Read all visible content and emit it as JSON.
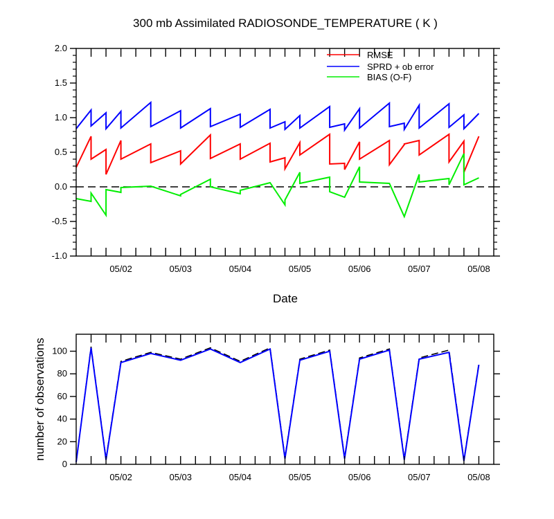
{
  "chart_data": [
    {
      "type": "line",
      "title": "300 mb Assimilated RADIOSONDE_TEMPERATURE ( K )",
      "xlabel": "Date",
      "ylabel": "",
      "xlim": [
        0,
        7.0
      ],
      "ylim": [
        -1.0,
        2.0
      ],
      "yticks": [
        -1.0,
        -0.5,
        0.0,
        0.5,
        1.0,
        1.5,
        2.0
      ],
      "ytick_labels": [
        "-1.0",
        "-0.5",
        "0.0",
        "0.5",
        "1.0",
        "1.5",
        "2.0"
      ],
      "xticks": [
        0.25,
        0.5,
        0.75,
        1,
        1.25,
        1.5,
        1.75,
        2,
        2.25,
        2.5,
        2.75,
        3,
        3.25,
        3.5,
        3.75,
        4,
        4.25,
        4.5,
        4.75,
        5,
        5.25,
        5.5,
        5.75,
        6,
        6.25,
        6.5,
        6.75
      ],
      "xtick_labels": [
        {
          "x": 0.75,
          "label": "05/02"
        },
        {
          "x": 1.75,
          "label": "05/03"
        },
        {
          "x": 2.75,
          "label": "05/04"
        },
        {
          "x": 3.75,
          "label": "05/05"
        },
        {
          "x": 4.75,
          "label": "05/06"
        },
        {
          "x": 5.75,
          "label": "05/07"
        },
        {
          "x": 6.75,
          "label": "05/08"
        }
      ],
      "reference_line": {
        "y": 0.0,
        "style": "dashed",
        "color": "#000000"
      },
      "legend": {
        "placement": "top-right",
        "entries": [
          "RMSE",
          "SPRD + ob error",
          "BIAS (O-F)"
        ]
      },
      "series": [
        {
          "name": "RMSE",
          "color": "#ff0000",
          "points": [
            [
              0,
              0.28
            ],
            [
              0.25,
              0.73
            ],
            [
              0.25,
              0.4
            ],
            [
              0.5,
              0.54
            ],
            [
              0.5,
              0.18
            ],
            [
              0.75,
              0.67
            ],
            [
              0.75,
              0.4
            ],
            [
              1.25,
              0.62
            ],
            [
              1.25,
              0.35
            ],
            [
              1.75,
              0.52
            ],
            [
              1.75,
              0.33
            ],
            [
              2.25,
              0.75
            ],
            [
              2.25,
              0.41
            ],
            [
              2.75,
              0.62
            ],
            [
              2.75,
              0.4
            ],
            [
              3.25,
              0.63
            ],
            [
              3.25,
              0.36
            ],
            [
              3.5,
              0.42
            ],
            [
              3.5,
              0.26
            ],
            [
              3.75,
              0.64
            ],
            [
              3.75,
              0.46
            ],
            [
              4.25,
              0.76
            ],
            [
              4.25,
              0.33
            ],
            [
              4.5,
              0.34
            ],
            [
              4.5,
              0.25
            ],
            [
              4.75,
              0.65
            ],
            [
              4.75,
              0.4
            ],
            [
              5.25,
              0.67
            ],
            [
              5.25,
              0.32
            ],
            [
              5.5,
              0.61
            ],
            [
              5.5,
              0.62
            ],
            [
              5.75,
              0.67
            ],
            [
              5.75,
              0.46
            ],
            [
              6.25,
              0.76
            ],
            [
              6.25,
              0.36
            ],
            [
              6.5,
              0.66
            ],
            [
              6.5,
              0.21
            ],
            [
              6.75,
              0.73
            ]
          ]
        },
        {
          "name": "SPRD + ob error",
          "color": "#0000ff",
          "points": [
            [
              0,
              0.84
            ],
            [
              0.25,
              1.11
            ],
            [
              0.25,
              0.88
            ],
            [
              0.5,
              1.07
            ],
            [
              0.5,
              0.84
            ],
            [
              0.75,
              1.09
            ],
            [
              0.75,
              0.85
            ],
            [
              1.25,
              1.22
            ],
            [
              1.25,
              0.87
            ],
            [
              1.75,
              1.1
            ],
            [
              1.75,
              0.85
            ],
            [
              2.25,
              1.13
            ],
            [
              2.25,
              0.87
            ],
            [
              2.75,
              1.05
            ],
            [
              2.75,
              0.86
            ],
            [
              3.25,
              1.12
            ],
            [
              3.25,
              0.85
            ],
            [
              3.5,
              0.94
            ],
            [
              3.5,
              0.83
            ],
            [
              3.75,
              1.03
            ],
            [
              3.75,
              0.85
            ],
            [
              4.25,
              1.16
            ],
            [
              4.25,
              0.86
            ],
            [
              4.5,
              0.91
            ],
            [
              4.5,
              0.82
            ],
            [
              4.75,
              1.13
            ],
            [
              4.75,
              0.85
            ],
            [
              5.25,
              1.21
            ],
            [
              5.25,
              0.87
            ],
            [
              5.5,
              0.92
            ],
            [
              5.5,
              0.83
            ],
            [
              5.75,
              1.18
            ],
            [
              5.75,
              0.85
            ],
            [
              6.25,
              1.2
            ],
            [
              6.25,
              0.86
            ],
            [
              6.5,
              1.04
            ],
            [
              6.5,
              0.84
            ],
            [
              6.75,
              1.06
            ]
          ]
        },
        {
          "name": "BIAS (O-F)",
          "color": "#00ee00",
          "points": [
            [
              0,
              -0.17
            ],
            [
              0.25,
              -0.21
            ],
            [
              0.25,
              -0.09
            ],
            [
              0.5,
              -0.41
            ],
            [
              0.5,
              -0.04
            ],
            [
              0.75,
              -0.08
            ],
            [
              0.75,
              -0.01
            ],
            [
              1.25,
              0.01
            ],
            [
              1.75,
              -0.13
            ],
            [
              1.75,
              -0.11
            ],
            [
              2.25,
              0.11
            ],
            [
              2.25,
              0.0
            ],
            [
              2.75,
              -0.1
            ],
            [
              2.75,
              -0.05
            ],
            [
              3.25,
              0.06
            ],
            [
              3.5,
              -0.26
            ],
            [
              3.5,
              -0.19
            ],
            [
              3.75,
              0.21
            ],
            [
              3.75,
              0.05
            ],
            [
              4.25,
              0.14
            ],
            [
              4.25,
              -0.07
            ],
            [
              4.5,
              -0.15
            ],
            [
              4.75,
              0.29
            ],
            [
              4.75,
              0.07
            ],
            [
              5.25,
              0.05
            ],
            [
              5.5,
              -0.43
            ],
            [
              5.75,
              0.18
            ],
            [
              5.75,
              0.07
            ],
            [
              6.25,
              0.12
            ],
            [
              6.25,
              0.03
            ],
            [
              6.5,
              0.48
            ],
            [
              6.5,
              0.03
            ],
            [
              6.75,
              0.13
            ]
          ]
        }
      ]
    },
    {
      "type": "line",
      "title": "",
      "xlabel": "",
      "ylabel": "number of observations",
      "xlim": [
        0,
        7.0
      ],
      "ylim": [
        0,
        115
      ],
      "yticks": [
        0,
        20,
        40,
        60,
        80,
        100
      ],
      "ytick_labels": [
        "0",
        "20",
        "40",
        "60",
        "80",
        "100"
      ],
      "xticks": [
        0.25,
        0.5,
        0.75,
        1,
        1.25,
        1.5,
        1.75,
        2,
        2.25,
        2.5,
        2.75,
        3,
        3.25,
        3.5,
        3.75,
        4,
        4.25,
        4.5,
        4.75,
        5,
        5.25,
        5.5,
        5.75,
        6,
        6.25,
        6.5,
        6.75
      ],
      "xtick_labels": [
        {
          "x": 0.75,
          "label": "05/02"
        },
        {
          "x": 1.75,
          "label": "05/03"
        },
        {
          "x": 2.75,
          "label": "05/04"
        },
        {
          "x": 3.75,
          "label": "05/05"
        },
        {
          "x": 4.75,
          "label": "05/06"
        },
        {
          "x": 5.75,
          "label": "05/07"
        },
        {
          "x": 6.75,
          "label": "05/08"
        }
      ],
      "series": [
        {
          "color": "#000000",
          "style": "dashed",
          "points": [
            [
              0,
              2
            ],
            [
              0.25,
              104
            ],
            [
              0.5,
              5
            ],
            [
              0.75,
              91
            ],
            [
              1.25,
              99
            ],
            [
              1.75,
              93
            ],
            [
              2.25,
              103
            ],
            [
              2.75,
              91
            ],
            [
              3.25,
              103
            ],
            [
              3.5,
              6
            ],
            [
              3.75,
              93
            ],
            [
              4.25,
              101
            ],
            [
              4.5,
              6
            ],
            [
              4.75,
              94
            ],
            [
              5.25,
              102
            ],
            [
              5.5,
              5
            ],
            [
              5.75,
              94
            ],
            [
              6.25,
              101
            ],
            [
              6.5,
              4
            ],
            [
              6.75,
              89
            ]
          ]
        },
        {
          "color": "#0000ff",
          "style": "solid",
          "points": [
            [
              0,
              2
            ],
            [
              0.25,
              103
            ],
            [
              0.5,
              4
            ],
            [
              0.75,
              90
            ],
            [
              1.25,
              98
            ],
            [
              1.75,
              92
            ],
            [
              2.25,
              102
            ],
            [
              2.75,
              90
            ],
            [
              3.25,
              102
            ],
            [
              3.5,
              5
            ],
            [
              3.75,
              92
            ],
            [
              4.25,
              100
            ],
            [
              4.5,
              5
            ],
            [
              4.75,
              93
            ],
            [
              5.25,
              101
            ],
            [
              5.5,
              4
            ],
            [
              5.75,
              93
            ],
            [
              6.25,
              99
            ],
            [
              6.5,
              3
            ],
            [
              6.75,
              88
            ]
          ]
        }
      ]
    }
  ]
}
